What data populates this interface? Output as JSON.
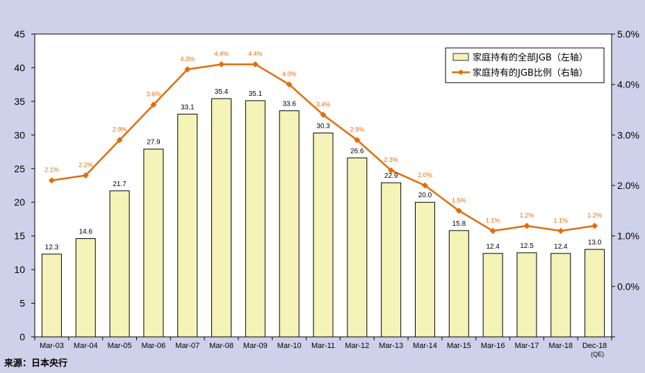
{
  "chart_data": {
    "type": "bar",
    "categories": [
      "Mar-03",
      "Mar-04",
      "Mar-05",
      "Mar-06",
      "Mar-07",
      "Mar-08",
      "Mar-09",
      "Mar-10",
      "Mar-11",
      "Mar-12",
      "Mar-13",
      "Mar-14",
      "Mar-15",
      "Mar-16",
      "Mar-17",
      "Mar-18",
      "Dec-18"
    ],
    "category_sublabels": {
      "Dec-18": "(QE)"
    },
    "series": [
      {
        "name": "家庭持有的全部JGB（左轴）",
        "type": "bar",
        "axis": "left",
        "values": [
          12.3,
          14.6,
          21.7,
          27.9,
          33.1,
          35.4,
          35.1,
          33.6,
          30.3,
          26.6,
          22.9,
          20.0,
          15.8,
          12.4,
          12.5,
          12.4,
          13.0
        ],
        "labels": [
          "12.3",
          "14.6",
          "21.7",
          "27.9",
          "33.1",
          "35.4",
          "35.1",
          "33.6",
          "30.3",
          "26.6",
          "22.9",
          "20.0",
          "15.8",
          "12.4",
          "12.5",
          "12.4",
          "13.0"
        ],
        "color": "#f4f3b8",
        "border_color": "#000000"
      },
      {
        "name": "家庭持有的JGB比例（右轴）",
        "type": "line",
        "axis": "right",
        "values": [
          2.1,
          2.2,
          2.9,
          3.6,
          4.3,
          4.4,
          4.4,
          4.0,
          3.4,
          2.9,
          2.3,
          2.0,
          1.5,
          1.1,
          1.2,
          1.1,
          1.2
        ],
        "labels": [
          "2.1%",
          "2.2%",
          "2.9%",
          "3.6%",
          "4.3%",
          "4.4%",
          "4.4%",
          "4.0%",
          "3.4%",
          "2.9%",
          "2.3%",
          "2.0%",
          "1.5%",
          "1.1%",
          "1.2%",
          "1.1%",
          "1.2%"
        ],
        "color": "#e36c09"
      }
    ],
    "y_left": {
      "ylim": [
        0,
        45
      ],
      "ticks": [
        "0",
        "5",
        "10",
        "15",
        "20",
        "25",
        "30",
        "35",
        "40",
        "45"
      ]
    },
    "y_right": {
      "ylim": [
        -1.0,
        5.0
      ],
      "ticks": [
        "0.0%",
        "1.0%",
        "2.0%",
        "3.0%",
        "4.0%",
        "5.0%"
      ],
      "tick_values": [
        0,
        1,
        2,
        3,
        4,
        5
      ]
    },
    "legend": {
      "placement": "top-right"
    },
    "grid": false,
    "source": "来源：日本央行"
  }
}
